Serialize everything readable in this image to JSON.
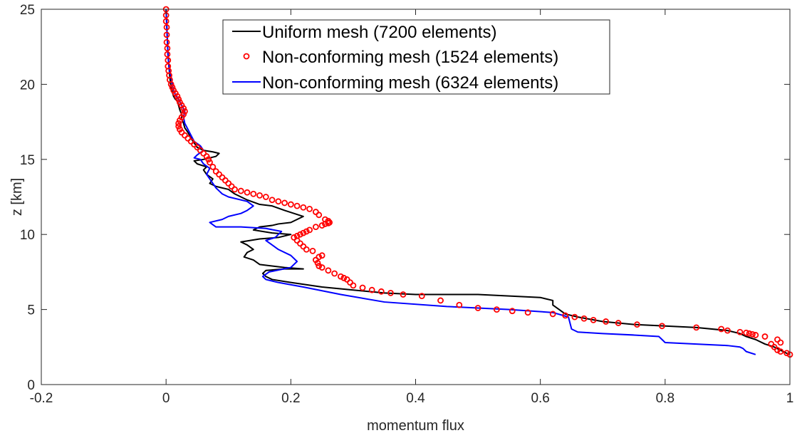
{
  "chart_data": {
    "type": "line",
    "title": "",
    "xlabel": "momentum flux",
    "ylabel": "z [km]",
    "xlim": [
      -0.2,
      1
    ],
    "ylim": [
      0,
      25
    ],
    "xticks": [
      "-0.2",
      "0",
      "0.2",
      "0.4",
      "0.6",
      "0.8",
      "1"
    ],
    "xtick_values": [
      -0.2,
      0,
      0.2,
      0.4,
      0.6,
      0.8,
      1
    ],
    "yticks": [
      "0",
      "5",
      "10",
      "15",
      "20",
      "25"
    ],
    "ytick_values": [
      0,
      5,
      10,
      15,
      20,
      25
    ],
    "grid": false,
    "legend_position": "top-center",
    "series": [
      {
        "name": "Uniform mesh (7200 elements)",
        "style": "line",
        "color": "#000000",
        "x": [
          0.999,
          0.975,
          0.96,
          0.945,
          0.93,
          0.925,
          0.92,
          0.9,
          0.85,
          0.75,
          0.7,
          0.66,
          0.64,
          0.63,
          0.62,
          0.62,
          0.6,
          0.5,
          0.4,
          0.35,
          0.3,
          0.25,
          0.2,
          0.17,
          0.16,
          0.155,
          0.16,
          0.19,
          0.22,
          0.19,
          0.15,
          0.14,
          0.125,
          0.13,
          0.14,
          0.13,
          0.12,
          0.15,
          0.18,
          0.2,
          0.17,
          0.14,
          0.15,
          0.17,
          0.18,
          0.2,
          0.22,
          0.19,
          0.17,
          0.15,
          0.13,
          0.12,
          0.11,
          0.1,
          0.09,
          0.08,
          0.07,
          0.075,
          0.065,
          0.06,
          0.065,
          0.05,
          0.045,
          0.06,
          0.08,
          0.085,
          0.075,
          0.06,
          0.05,
          0.045,
          0.04,
          0.035,
          0.03,
          0.028,
          0.025,
          0.025,
          0.022,
          0.02,
          0.018,
          0.015,
          0.012,
          0.01,
          0.008,
          0.007,
          0.006,
          0.005,
          0.004,
          0.003,
          0.002,
          0.001,
          0.0
        ],
        "y": [
          2.0,
          2.5,
          2.7,
          3.0,
          3.2,
          3.3,
          3.4,
          3.6,
          3.8,
          4.0,
          4.2,
          4.5,
          4.7,
          5.0,
          5.3,
          5.6,
          5.8,
          6.0,
          6.0,
          6.1,
          6.3,
          6.5,
          6.8,
          7.0,
          7.2,
          7.4,
          7.6,
          7.7,
          7.7,
          7.8,
          8.0,
          8.3,
          8.5,
          8.8,
          9.0,
          9.3,
          9.5,
          9.7,
          9.8,
          10.0,
          10.1,
          10.3,
          10.5,
          10.6,
          10.7,
          10.8,
          11.2,
          11.6,
          11.9,
          12.0,
          12.3,
          12.5,
          12.7,
          13.0,
          13.1,
          13.2,
          13.4,
          13.7,
          14.0,
          14.3,
          14.5,
          14.7,
          14.9,
          15.0,
          15.2,
          15.4,
          15.5,
          15.6,
          15.8,
          16.1,
          16.4,
          16.8,
          17.1,
          17.4,
          17.7,
          18.0,
          18.3,
          18.6,
          18.9,
          19.0,
          19.2,
          19.5,
          19.8,
          20.1,
          20.5,
          21.0,
          21.5,
          22.0,
          23.0,
          24.0,
          25.0
        ]
      },
      {
        "name": "Non-conforming mesh (1524 elements)",
        "style": "markers",
        "color": "#ff0000",
        "x": [
          1.0,
          0.995,
          0.985,
          0.98,
          0.975,
          0.97,
          0.985,
          0.98,
          0.96,
          0.945,
          0.94,
          0.935,
          0.93,
          0.92,
          0.9,
          0.89,
          0.85,
          0.795,
          0.755,
          0.725,
          0.705,
          0.685,
          0.67,
          0.655,
          0.64,
          0.62,
          0.58,
          0.555,
          0.53,
          0.5,
          0.47,
          0.44,
          0.41,
          0.38,
          0.36,
          0.345,
          0.33,
          0.315,
          0.3,
          0.295,
          0.29,
          0.285,
          0.28,
          0.27,
          0.26,
          0.25,
          0.245,
          0.243,
          0.24,
          0.245,
          0.25,
          0.235,
          0.225,
          0.22,
          0.215,
          0.21,
          0.205,
          0.21,
          0.215,
          0.22,
          0.225,
          0.23,
          0.24,
          0.25,
          0.255,
          0.26,
          0.262,
          0.26,
          0.255,
          0.245,
          0.24,
          0.23,
          0.22,
          0.21,
          0.2,
          0.19,
          0.18,
          0.17,
          0.16,
          0.15,
          0.14,
          0.13,
          0.12,
          0.11,
          0.105,
          0.1,
          0.095,
          0.09,
          0.085,
          0.08,
          0.075,
          0.07,
          0.068,
          0.065,
          0.06,
          0.055,
          0.05,
          0.045,
          0.04,
          0.035,
          0.03,
          0.025,
          0.022,
          0.02,
          0.02,
          0.022,
          0.025,
          0.028,
          0.03,
          0.028,
          0.025,
          0.022,
          0.02,
          0.018,
          0.015,
          0.012,
          0.01,
          0.008,
          0.006,
          0.005,
          0.004,
          0.003,
          0.003,
          0.002,
          0.002,
          0.001,
          0.001,
          0.001,
          0.0,
          0.0,
          0.0
        ],
        "y": [
          2.0,
          2.1,
          2.2,
          2.3,
          2.5,
          2.7,
          2.8,
          3.0,
          3.2,
          3.3,
          3.35,
          3.4,
          3.45,
          3.5,
          3.6,
          3.7,
          3.8,
          3.9,
          4.0,
          4.1,
          4.2,
          4.3,
          4.4,
          4.5,
          4.6,
          4.7,
          4.8,
          4.9,
          5.0,
          5.1,
          5.3,
          5.6,
          5.9,
          6.0,
          6.1,
          6.2,
          6.3,
          6.45,
          6.6,
          6.8,
          7.0,
          7.1,
          7.2,
          7.4,
          7.6,
          7.8,
          7.9,
          8.1,
          8.3,
          8.5,
          8.6,
          8.9,
          9.0,
          9.2,
          9.4,
          9.6,
          9.8,
          9.9,
          10.0,
          10.1,
          10.2,
          10.3,
          10.5,
          10.6,
          10.7,
          10.75,
          10.8,
          10.9,
          11.0,
          11.3,
          11.5,
          11.7,
          11.8,
          11.9,
          12.0,
          12.1,
          12.2,
          12.3,
          12.5,
          12.6,
          12.7,
          12.8,
          12.9,
          13.0,
          13.2,
          13.4,
          13.6,
          13.8,
          14.0,
          14.2,
          14.5,
          14.8,
          15.0,
          15.2,
          15.4,
          15.6,
          15.8,
          16.0,
          16.2,
          16.4,
          16.6,
          16.8,
          17.0,
          17.2,
          17.4,
          17.6,
          17.8,
          18.0,
          18.2,
          18.4,
          18.6,
          18.8,
          19.0,
          19.2,
          19.4,
          19.6,
          19.8,
          20.0,
          20.3,
          20.6,
          20.9,
          21.2,
          21.6,
          22.0,
          22.4,
          22.8,
          23.3,
          23.8,
          24.2,
          24.6,
          25.0
        ]
      },
      {
        "name": "Non-conforming mesh (6324 elements)",
        "style": "line",
        "color": "#0000ff",
        "x": [
          0.945,
          0.93,
          0.925,
          0.92,
          0.9,
          0.85,
          0.8,
          0.795,
          0.79,
          0.75,
          0.7,
          0.66,
          0.65,
          0.645,
          0.62,
          0.55,
          0.45,
          0.35,
          0.28,
          0.22,
          0.18,
          0.16,
          0.155,
          0.165,
          0.2,
          0.21,
          0.2,
          0.18,
          0.17,
          0.16,
          0.175,
          0.18,
          0.185,
          0.16,
          0.12,
          0.08,
          0.07,
          0.09,
          0.1,
          0.12,
          0.13,
          0.14,
          0.13,
          0.1,
          0.09,
          0.085,
          0.08,
          0.075,
          0.07,
          0.065,
          0.07,
          0.06,
          0.055,
          0.045,
          0.05,
          0.06,
          0.055,
          0.045,
          0.04,
          0.035,
          0.03,
          0.028,
          0.03,
          0.025,
          0.02,
          0.015,
          0.012,
          0.01,
          0.008,
          0.005,
          0.003,
          0.002,
          0.001,
          0.0
        ],
        "y": [
          2.0,
          2.2,
          2.4,
          2.5,
          2.6,
          2.7,
          2.8,
          3.0,
          3.2,
          3.3,
          3.4,
          3.5,
          3.7,
          4.5,
          4.8,
          5.0,
          5.2,
          5.5,
          6.0,
          6.5,
          6.8,
          7.0,
          7.2,
          7.5,
          7.8,
          8.2,
          8.6,
          9.0,
          9.3,
          9.6,
          9.8,
          10.0,
          10.2,
          10.4,
          10.5,
          10.5,
          10.8,
          11.0,
          11.2,
          11.4,
          11.6,
          11.9,
          12.2,
          12.5,
          12.7,
          12.9,
          13.1,
          13.4,
          13.7,
          14.0,
          14.4,
          14.7,
          15.0,
          15.1,
          15.3,
          15.6,
          15.9,
          16.2,
          16.6,
          17.0,
          17.4,
          17.8,
          18.2,
          18.6,
          19.0,
          19.3,
          19.6,
          20.0,
          20.5,
          21.0,
          22.0,
          23.0,
          24.0,
          25.0
        ]
      }
    ]
  }
}
